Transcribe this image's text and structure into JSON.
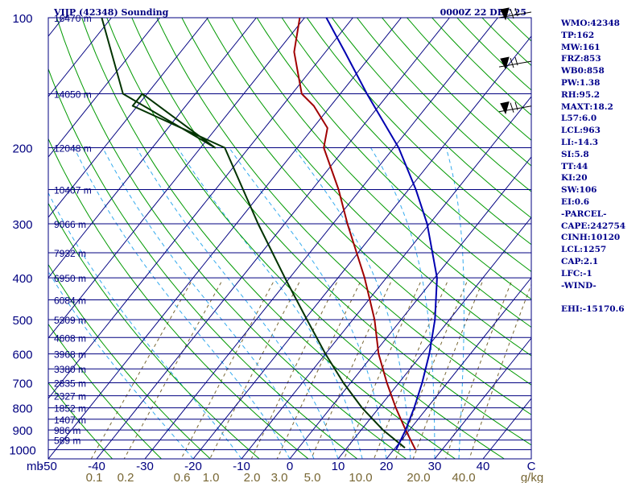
{
  "chart_data": {
    "type": "skew-t",
    "title": "VIJP (42348) Sounding",
    "valid_time": "0000Z 22 DEC 25",
    "xlabel": "C",
    "ylabel": "mb",
    "xlim": [
      -50,
      50
    ],
    "ylim": [
      1050,
      100
    ],
    "pressure_levels": [
      1000,
      900,
      800,
      700,
      600,
      500,
      400,
      300,
      200,
      100
    ],
    "pressure_tick_labels": [
      "1000",
      "900",
      "800",
      "700",
      "600",
      "500",
      "400",
      "300",
      "200",
      "100"
    ],
    "temperature_ticks": [
      -50,
      -40,
      -30,
      -20,
      -10,
      0,
      10,
      20,
      30,
      40,
      50
    ],
    "temperature_tick_labels": [
      "-50",
      "-40",
      "-30",
      "-20",
      "-10",
      "0",
      "10",
      "20",
      "30",
      "40",
      "C"
    ],
    "x_unit_label": "mb",
    "mixing_ratio_labels": [
      "0.1",
      "0.2",
      "0.6",
      "1.0",
      "2.0",
      "3.0",
      "5.0",
      "10.0",
      "20.0",
      "40.0",
      "g/kg"
    ],
    "height_labels": [
      {
        "p": 100,
        "label": "16470 m"
      },
      {
        "p": 150,
        "label": "14050 m"
      },
      {
        "p": 200,
        "label": "12048 m"
      },
      {
        "p": 250,
        "label": "10407 m"
      },
      {
        "p": 300,
        "label": "9066 m"
      },
      {
        "p": 350,
        "label": "7932 m"
      },
      {
        "p": 400,
        "label": "6950 m"
      },
      {
        "p": 450,
        "label": "6084 m"
      },
      {
        "p": 500,
        "label": "5309 m"
      },
      {
        "p": 550,
        "label": "4608 m"
      },
      {
        "p": 600,
        "label": "3968 m"
      },
      {
        "p": 650,
        "label": "3380 m"
      },
      {
        "p": 700,
        "label": "2835 m"
      },
      {
        "p": 750,
        "label": "2327 m"
      },
      {
        "p": 800,
        "label": "1852 m"
      },
      {
        "p": 850,
        "label": "1407 m"
      },
      {
        "p": 900,
        "label": "986 m"
      },
      {
        "p": 950,
        "label": "589 m"
      }
    ],
    "series": [
      {
        "name": "temperature",
        "color": "#a00000",
        "points": [
          {
            "p": 1000,
            "t": 24.5
          },
          {
            "p": 900,
            "t": 19.2
          },
          {
            "p": 800,
            "t": 13.5
          },
          {
            "p": 700,
            "t": 7.5
          },
          {
            "p": 600,
            "t": 1.0
          },
          {
            "p": 500,
            "t": -5.5
          },
          {
            "p": 400,
            "t": -14.5
          },
          {
            "p": 300,
            "t": -27.0
          },
          {
            "p": 250,
            "t": -34.5
          },
          {
            "p": 200,
            "t": -44.5
          },
          {
            "p": 180,
            "t": -47.0
          },
          {
            "p": 160,
            "t": -53.5
          },
          {
            "p": 150,
            "t": -58.0
          },
          {
            "p": 120,
            "t": -66.5
          },
          {
            "p": 100,
            "t": -71.0
          }
        ]
      },
      {
        "name": "dewpoint",
        "color": "#003300",
        "points": [
          {
            "p": 990,
            "t": 22.0
          },
          {
            "p": 900,
            "t": 14.5
          },
          {
            "p": 800,
            "t": 6.5
          },
          {
            "p": 700,
            "t": -1.5
          },
          {
            "p": 600,
            "t": -10.0
          },
          {
            "p": 500,
            "t": -19.5
          },
          {
            "p": 400,
            "t": -31.0
          },
          {
            "p": 300,
            "t": -45.5
          },
          {
            "p": 200,
            "t": -65.0
          },
          {
            "p": 160,
            "t": -91.0
          },
          {
            "p": 150,
            "t": -91.0
          },
          {
            "p": 200,
            "t": -67.0
          },
          {
            "p": 150,
            "t": -95.0
          },
          {
            "p": 100,
            "t": -112.0
          }
        ]
      },
      {
        "name": "parcel",
        "color": "#0000b0",
        "points": [
          {
            "p": 1000,
            "t": 20.5
          },
          {
            "p": 900,
            "t": 19.2
          },
          {
            "p": 800,
            "t": 17.3
          },
          {
            "p": 700,
            "t": 14.8
          },
          {
            "p": 600,
            "t": 11.5
          },
          {
            "p": 500,
            "t": 7.0
          },
          {
            "p": 400,
            "t": 0.5
          },
          {
            "p": 300,
            "t": -10.5
          },
          {
            "p": 250,
            "t": -18.5
          },
          {
            "p": 200,
            "t": -29.0
          },
          {
            "p": 150,
            "t": -44.5
          },
          {
            "p": 120,
            "t": -56.0
          },
          {
            "p": 100,
            "t": -65.5
          }
        ]
      }
    ],
    "wind_barbs": [
      {
        "p": 100,
        "barb": "pennant-1-full-1-half"
      },
      {
        "p": 130,
        "barb": "full-3"
      },
      {
        "p": 165,
        "barb": "pennant-1-full-1"
      }
    ],
    "isotherm_color": "#000080",
    "dry_adiabat_color": "#009900",
    "moist_adiabat_color": "#33aaee",
    "mixing_ratio_color": "#776633",
    "grid": true
  },
  "stats": [
    "WMO:42348",
    "TP:162",
    "MW:161",
    "FRZ:853",
    "WB0:858",
    "PW:1.38",
    "RH:95.2",
    "MAXT:18.2",
    "L57:6.0",
    "LCL:963",
    "LI:-14.3",
    "SI:5.8",
    "TT:44",
    "KI:20",
    "SW:106",
    "EI:0.6",
    "-PARCEL-",
    "CAPE:242754",
    "CINH:10120",
    "LCL:1257",
    "CAP:2.1",
    "LFC:-1",
    "-WIND-",
    "",
    "EHI:-15170.6"
  ]
}
